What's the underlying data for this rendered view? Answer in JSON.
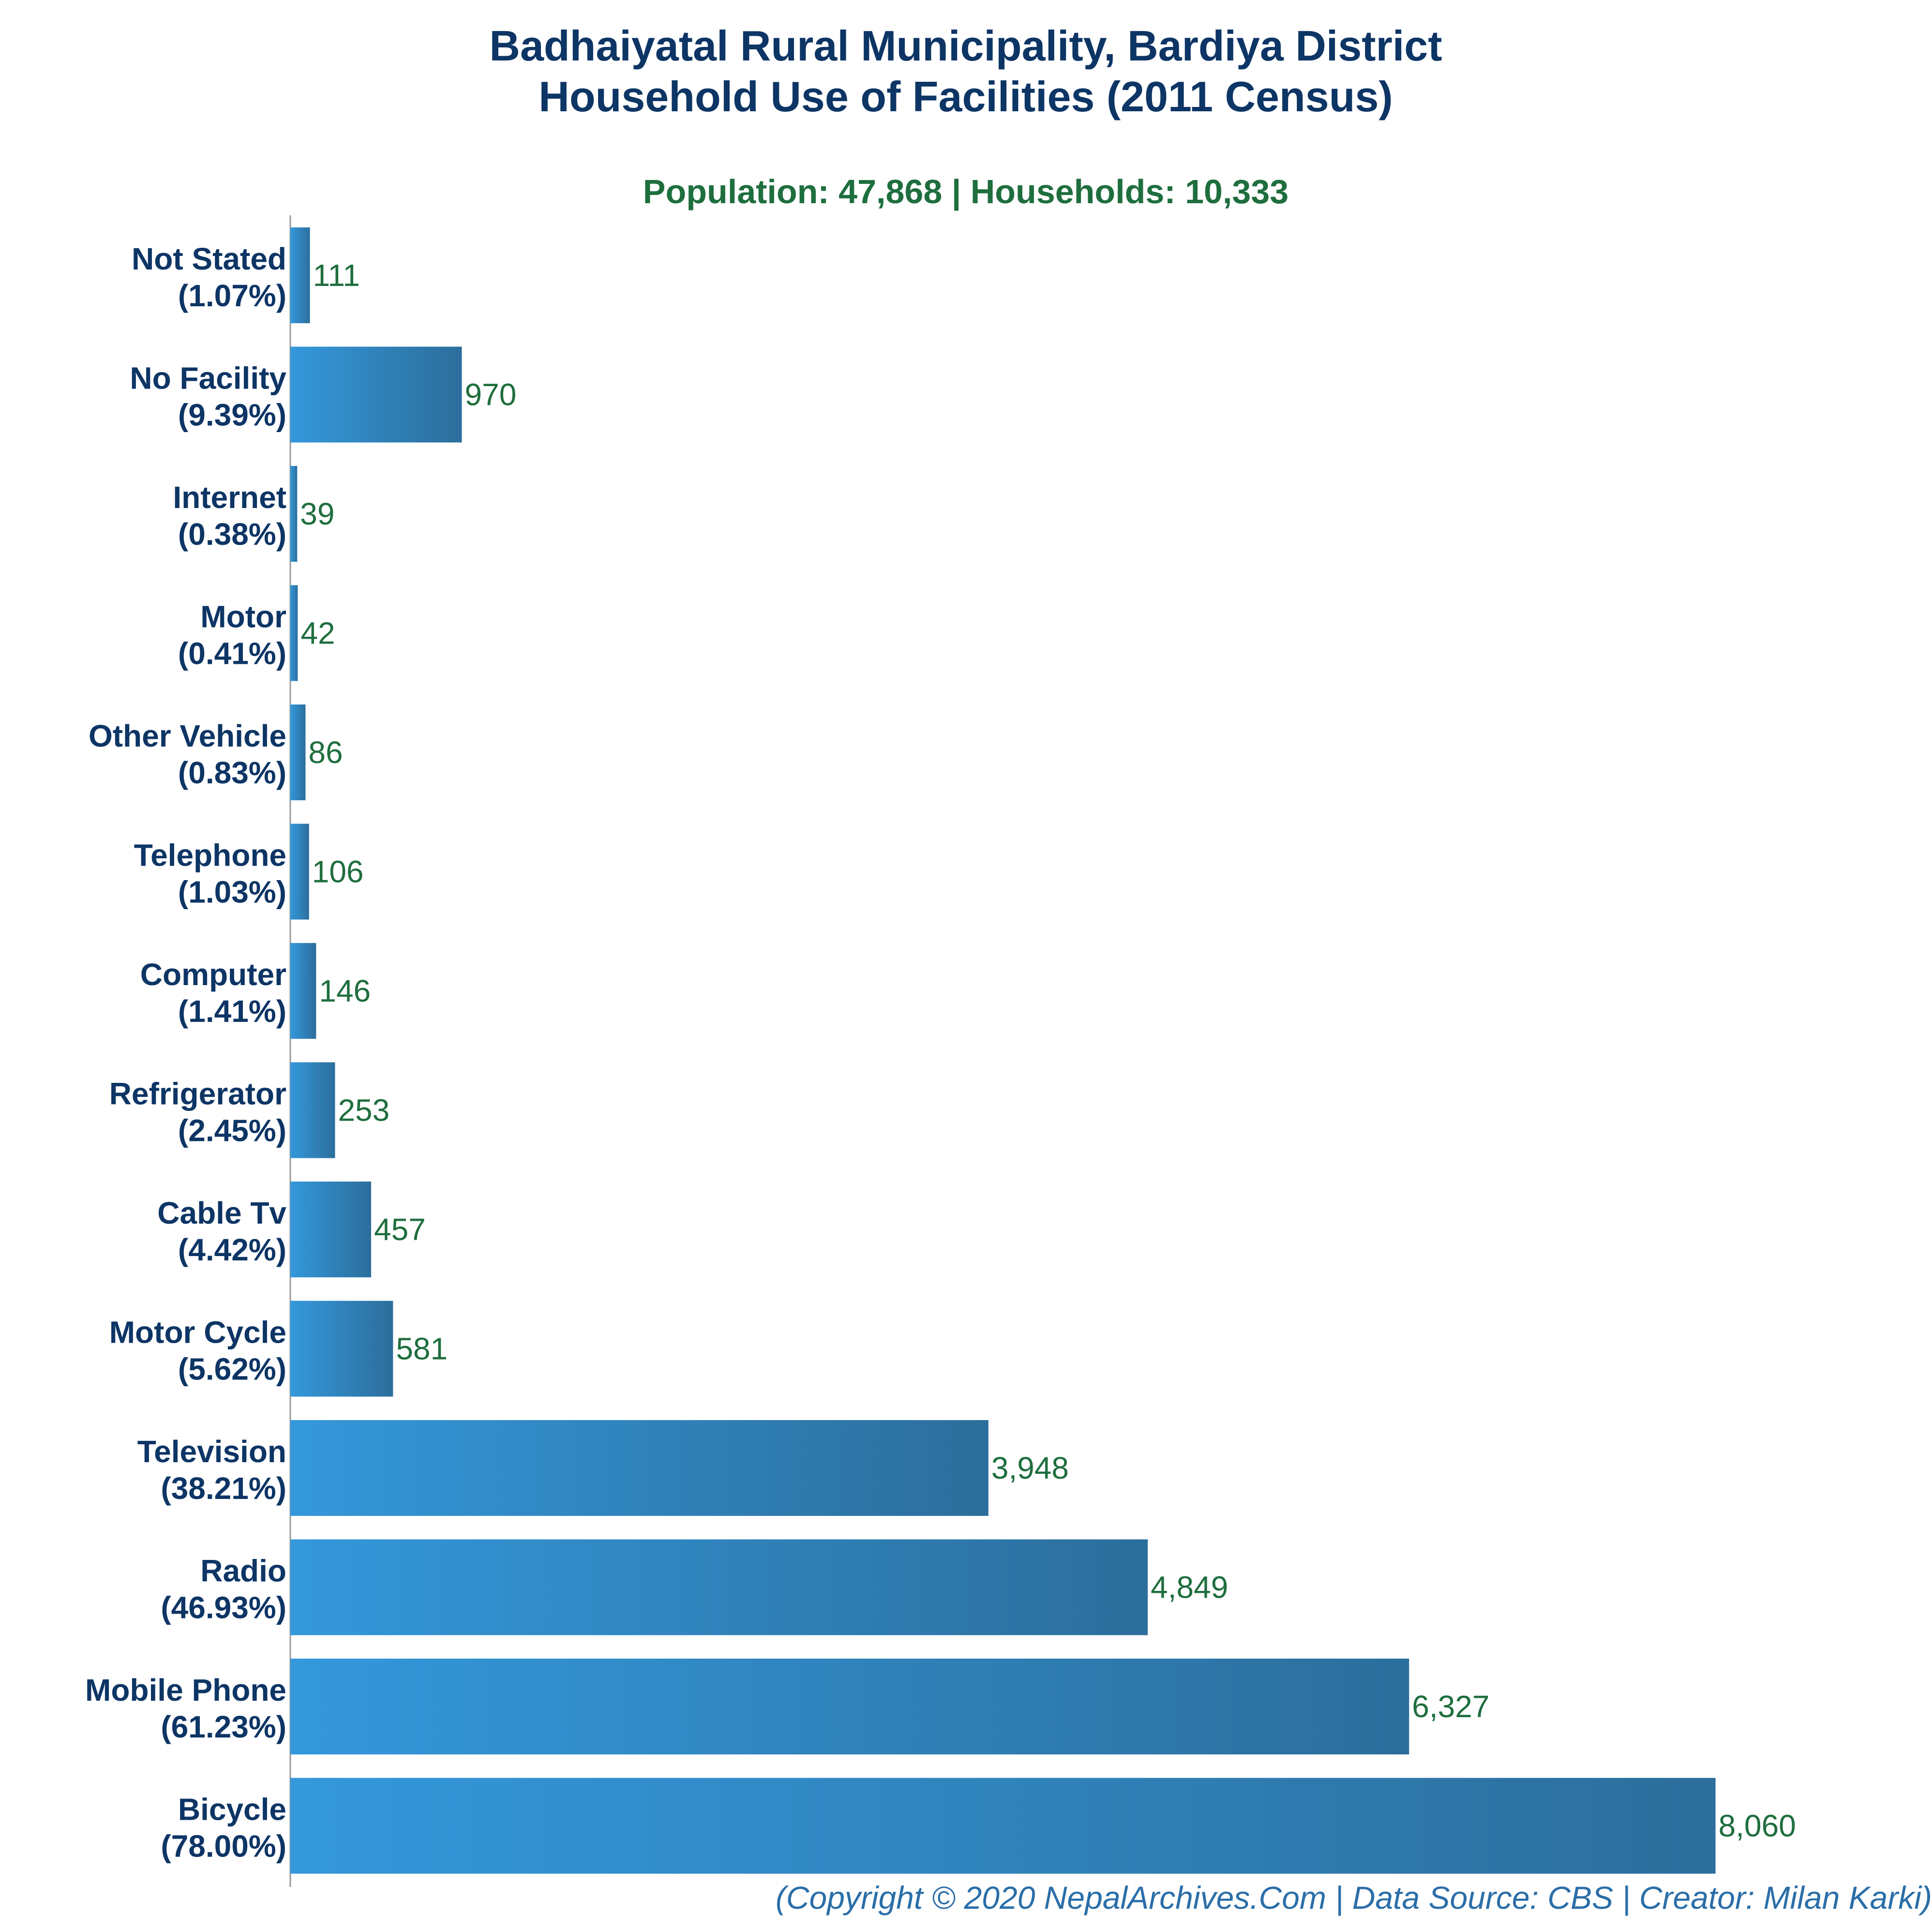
{
  "chart_data": {
    "type": "bar",
    "orientation": "horizontal",
    "title": [
      "Badhaiyatal Rural Municipality, Bardiya District",
      "Household Use of Facilities (2011 Census)"
    ],
    "subtitle": "Population: 47,868 | Households: 10,333",
    "categories": [
      {
        "name": "Not Stated",
        "percent": "(1.07%)"
      },
      {
        "name": "No Facility",
        "percent": "(9.39%)"
      },
      {
        "name": "Internet",
        "percent": "(0.38%)"
      },
      {
        "name": "Motor",
        "percent": "(0.41%)"
      },
      {
        "name": "Other Vehicle",
        "percent": "(0.83%)"
      },
      {
        "name": "Telephone",
        "percent": "(1.03%)"
      },
      {
        "name": "Computer",
        "percent": "(1.41%)"
      },
      {
        "name": "Refrigerator",
        "percent": "(2.45%)"
      },
      {
        "name": "Cable Tv",
        "percent": "(4.42%)"
      },
      {
        "name": "Motor Cycle",
        "percent": "(5.62%)"
      },
      {
        "name": "Television",
        "percent": "(38.21%)"
      },
      {
        "name": "Radio",
        "percent": "(46.93%)"
      },
      {
        "name": "Mobile Phone",
        "percent": "(61.23%)"
      },
      {
        "name": "Bicycle",
        "percent": "(78.00%)"
      }
    ],
    "values": [
      111,
      970,
      39,
      42,
      86,
      106,
      146,
      253,
      457,
      581,
      3948,
      4849,
      6327,
      8060
    ],
    "value_labels": [
      "111",
      "970",
      "39",
      "42",
      "86",
      "106",
      "146",
      "253",
      "457",
      "581",
      "3,948",
      "4,849",
      "6,327",
      "8,060"
    ],
    "xlim": [
      0,
      8600
    ],
    "grid": false,
    "colors": {
      "bar_start": "#3498db",
      "bar_end": "#2c6e9c",
      "title": "#0d3565",
      "subtitle": "#1e6e3e",
      "value": "#1e6e3e",
      "footer": "#2a6ea8",
      "axis": "#999999"
    }
  },
  "footer": "(Copyright © 2020 NepalArchives.Com | Data Source: CBS | Creator: Milan Karki)"
}
